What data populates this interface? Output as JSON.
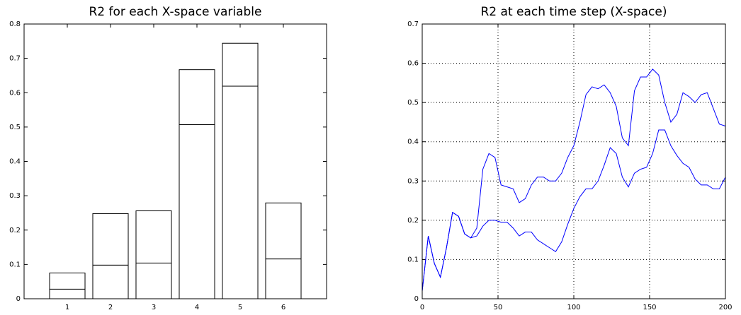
{
  "chart_data": [
    {
      "type": "bar",
      "title": "R2 for each X-space variable",
      "stacked": true,
      "categories": [
        "1",
        "2",
        "3",
        "4",
        "5",
        "6"
      ],
      "series": [
        {
          "color": "#ffffff",
          "values": [
            0.028,
            0.098,
            0.104,
            0.507,
            0.619,
            0.116
          ]
        },
        {
          "color": "#ffffff",
          "values": [
            0.047,
            0.15,
            0.152,
            0.16,
            0.125,
            0.163
          ]
        }
      ],
      "ylim": [
        0,
        0.8
      ],
      "yticks": [
        0,
        0.1,
        0.2,
        0.3,
        0.4,
        0.5,
        0.6,
        0.7,
        0.8
      ],
      "grid": false
    },
    {
      "type": "line",
      "title": "R2 at each time step (X-space)",
      "x": [
        0,
        4,
        8,
        12,
        16,
        20,
        24,
        28,
        32,
        36,
        40,
        44,
        48,
        52,
        56,
        60,
        64,
        68,
        72,
        76,
        80,
        84,
        88,
        92,
        96,
        100,
        104,
        108,
        112,
        116,
        120,
        124,
        128,
        132,
        136,
        140,
        144,
        148,
        152,
        156,
        160,
        164,
        168,
        172,
        176,
        180,
        184,
        188,
        192,
        196,
        200
      ],
      "series": [
        {
          "color": "#0000ff",
          "values": [
            0.02,
            0.16,
            0.09,
            0.055,
            0.13,
            0.22,
            0.21,
            0.165,
            0.155,
            0.18,
            0.33,
            0.37,
            0.36,
            0.29,
            0.285,
            0.28,
            0.245,
            0.255,
            0.29,
            0.31,
            0.31,
            0.3,
            0.3,
            0.32,
            0.36,
            0.39,
            0.45,
            0.52,
            0.54,
            0.535,
            0.545,
            0.525,
            0.49,
            0.41,
            0.39,
            0.53,
            0.565,
            0.565,
            0.585,
            0.57,
            0.5,
            0.45,
            0.47,
            0.525,
            0.515,
            0.5,
            0.52,
            0.525,
            0.485,
            0.445,
            0.44
          ]
        },
        {
          "color": "#0000ff",
          "values": [
            0.02,
            0.16,
            0.09,
            0.055,
            0.13,
            0.22,
            0.21,
            0.165,
            0.155,
            0.16,
            0.185,
            0.2,
            0.2,
            0.195,
            0.195,
            0.18,
            0.16,
            0.17,
            0.17,
            0.15,
            0.14,
            0.13,
            0.12,
            0.145,
            0.19,
            0.23,
            0.26,
            0.28,
            0.28,
            0.3,
            0.34,
            0.385,
            0.37,
            0.31,
            0.285,
            0.32,
            0.33,
            0.335,
            0.37,
            0.43,
            0.43,
            0.39,
            0.365,
            0.345,
            0.335,
            0.305,
            0.29,
            0.29,
            0.28,
            0.28,
            0.31
          ]
        }
      ],
      "xlim": [
        0,
        200
      ],
      "xticks": [
        0,
        50,
        100,
        150,
        200
      ],
      "ylim": [
        0,
        0.7
      ],
      "yticks": [
        0,
        0.1,
        0.2,
        0.3,
        0.4,
        0.5,
        0.6,
        0.7
      ],
      "grid": true
    }
  ]
}
